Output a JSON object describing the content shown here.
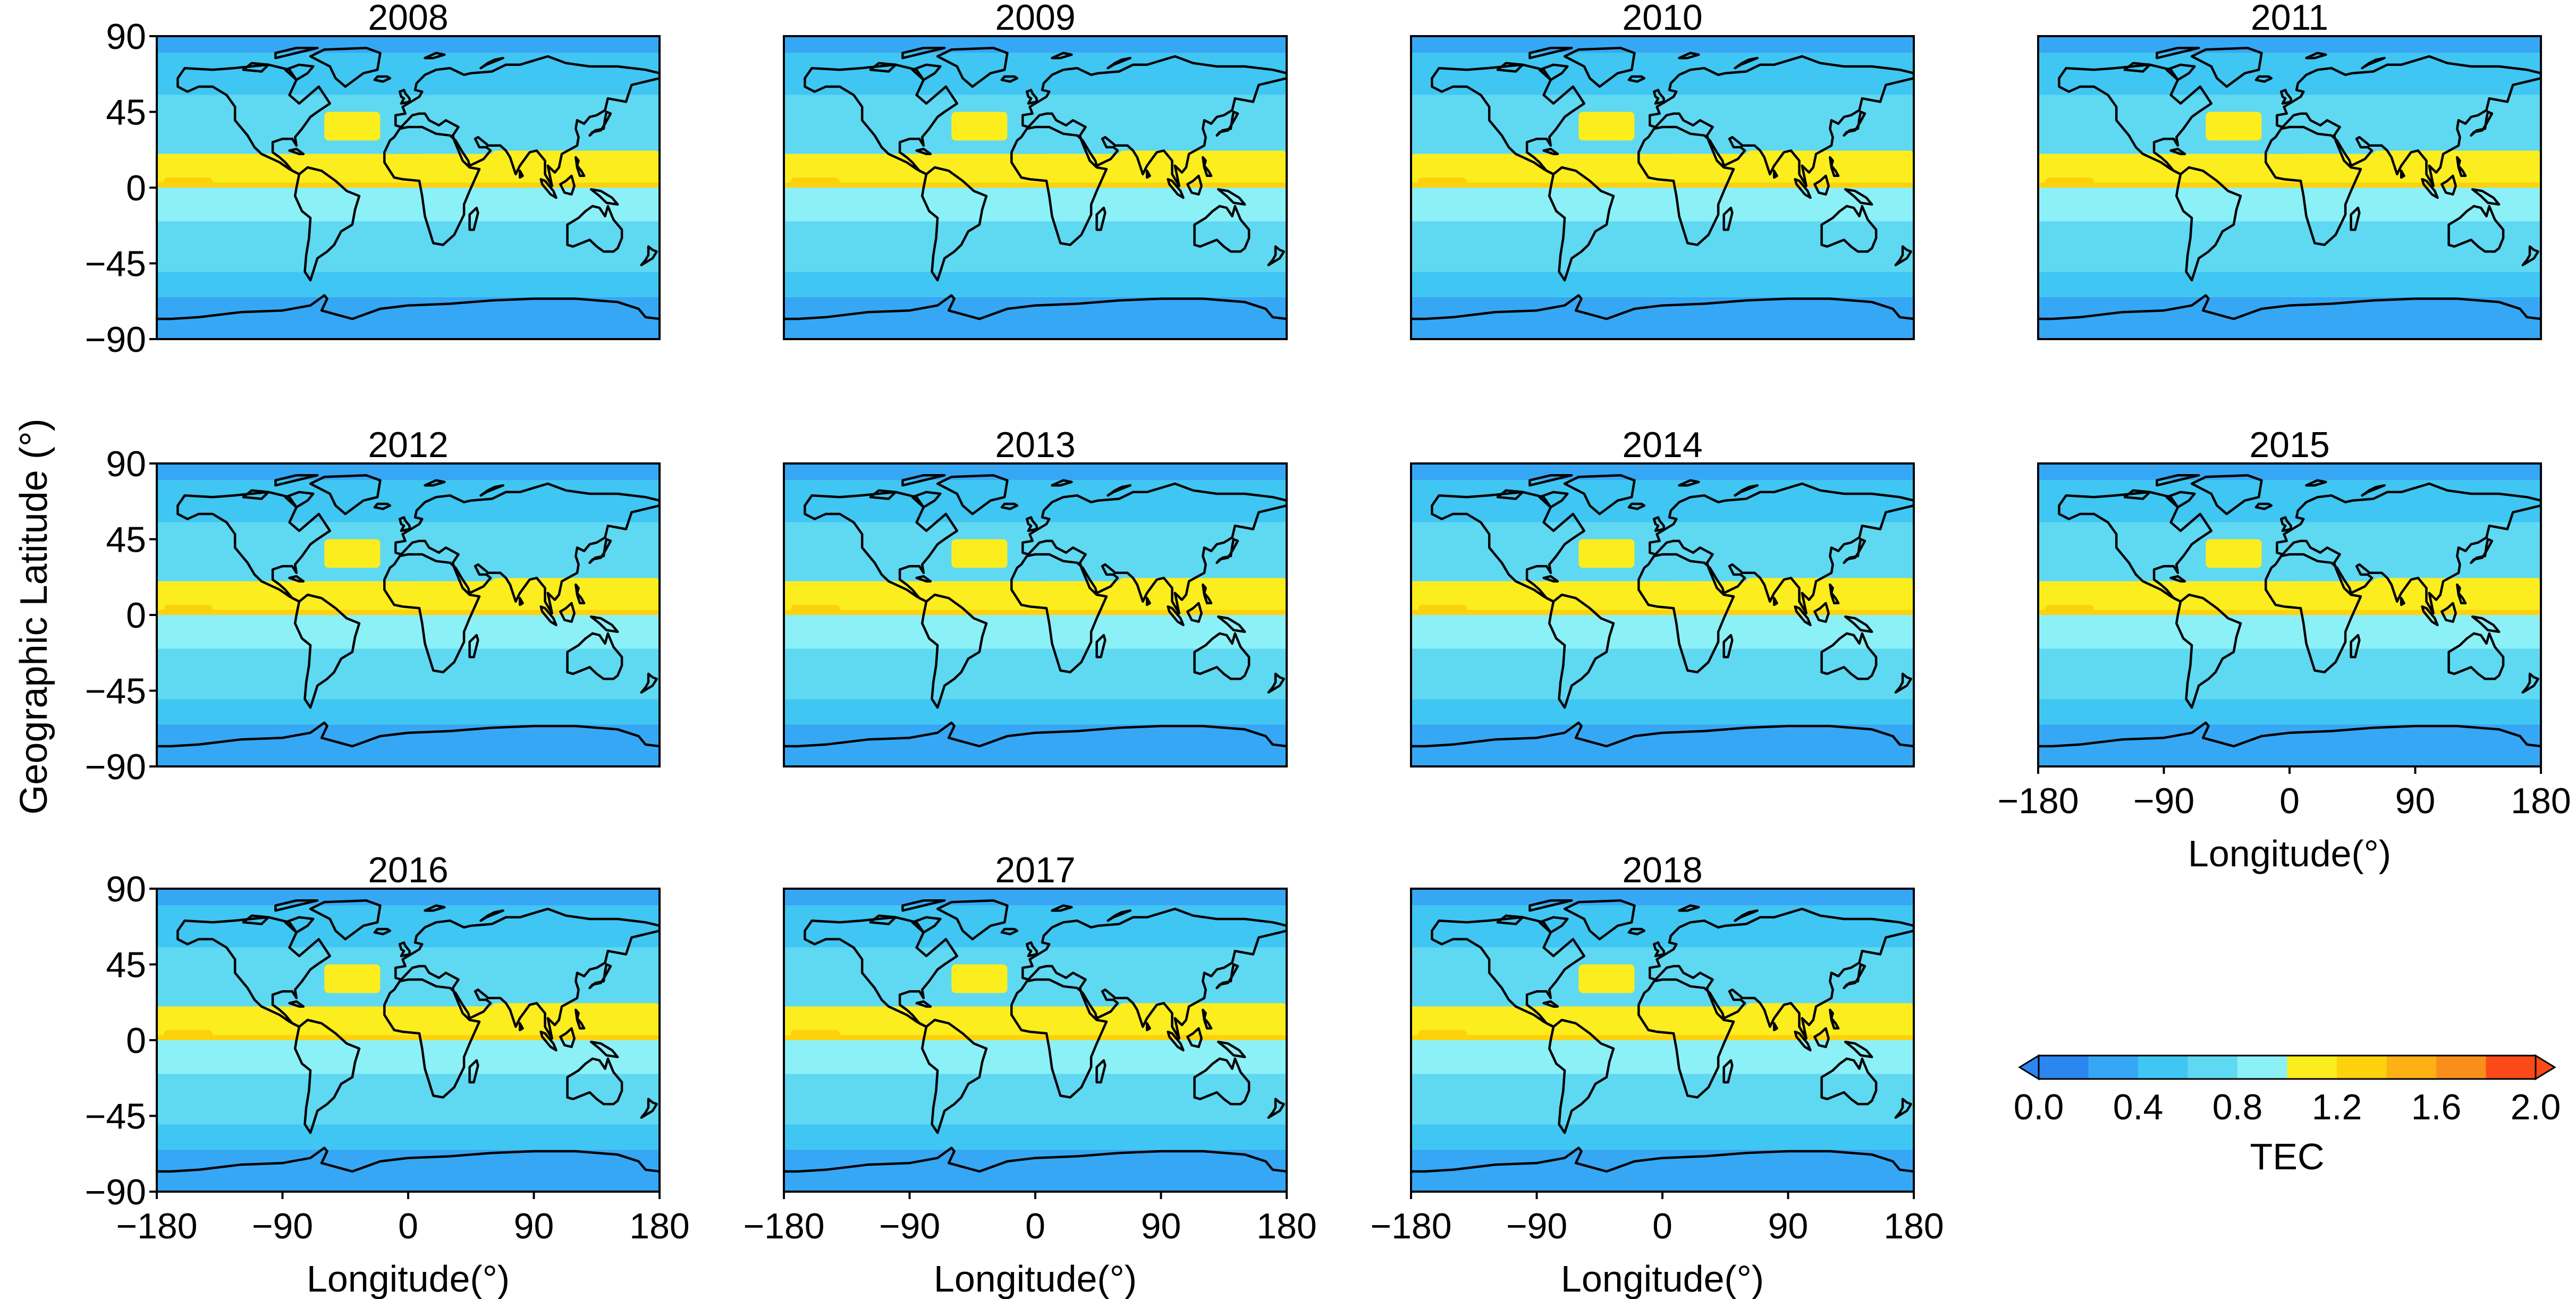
{
  "chart_data": {
    "type": "heatmap",
    "ylabel": "Geographic Latitude (°)",
    "xlabel": "Longitude(°)",
    "xlim": [
      -180,
      180
    ],
    "ylim": [
      -90,
      90
    ],
    "xticks": [
      -180,
      -90,
      0,
      90,
      180
    ],
    "xtick_labels": [
      "−180",
      "−90",
      "0",
      "90",
      "180"
    ],
    "yticks": [
      90,
      45,
      0,
      -45,
      -90
    ],
    "ytick_labels": [
      "90",
      "45",
      "0",
      "−45",
      "−90"
    ],
    "panels": [
      {
        "title": "2008"
      },
      {
        "title": "2009"
      },
      {
        "title": "2010"
      },
      {
        "title": "2011"
      },
      {
        "title": "2012"
      },
      {
        "title": "2013"
      },
      {
        "title": "2014"
      },
      {
        "title": "2015"
      },
      {
        "title": "2016"
      },
      {
        "title": "2017"
      },
      {
        "title": "2018"
      }
    ],
    "overlay": "coastlines",
    "field_pattern": {
      "bands": [
        {
          "lat_range": [
            80,
            90
          ],
          "level": 0.3
        },
        {
          "lat_range": [
            55,
            80
          ],
          "level": 0.5
        },
        {
          "lat_range": [
            20,
            55
          ],
          "level": 0.7
        },
        {
          "lat_range": [
            0,
            20
          ],
          "level": 1.1
        },
        {
          "lat_range": [
            -20,
            0
          ],
          "level": 0.9
        },
        {
          "lat_range": [
            -50,
            -20
          ],
          "level": 0.6
        },
        {
          "lat_range": [
            -65,
            -50
          ],
          "level": 0.5
        },
        {
          "lat_range": [
            -78,
            -65
          ],
          "level": 0.3
        },
        {
          "lat_range": [
            -90,
            -78
          ],
          "level": 0.2
        }
      ],
      "features": [
        {
          "lon": [
            -60,
            -20
          ],
          "lat": [
            28,
            45
          ],
          "level": 1.1
        },
        {
          "lon": [
            -180,
            180
          ],
          "lat": [
            0,
            3
          ],
          "level": 1.25
        },
        {
          "lon": [
            60,
            180
          ],
          "lat": [
            3,
            22
          ],
          "level": 1.1
        },
        {
          "lon": [
            -20,
            10
          ],
          "lat": [
            3,
            20
          ],
          "level": 1.1
        },
        {
          "lon": [
            -175,
            -140
          ],
          "lat": [
            0,
            6
          ],
          "level": 1.3
        }
      ]
    },
    "colorbar": {
      "label": "TEC",
      "min": 0.0,
      "max": 2.0,
      "tick_labels": [
        "0.0",
        "0.4",
        "0.8",
        "1.2",
        "1.6",
        "2.0"
      ],
      "extend": "both",
      "colors": [
        "#2b86f0",
        "#36a7f4",
        "#3fc6f2",
        "#5fd8f2",
        "#8cf0f7",
        "#fbed1e",
        "#fdd10c",
        "#fdb114",
        "#fb8e1a",
        "#fb4a18"
      ]
    }
  }
}
